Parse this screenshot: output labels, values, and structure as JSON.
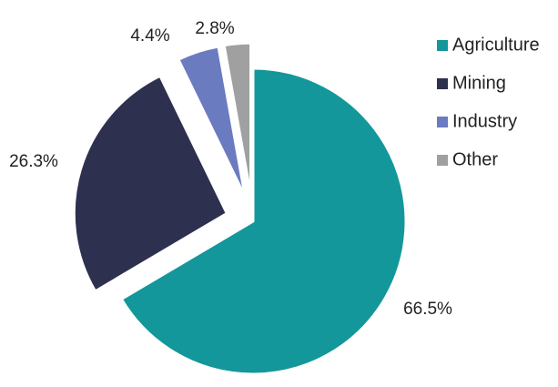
{
  "chart_data": {
    "type": "pie",
    "categories": [
      "Agriculture",
      "Mining",
      "Industry",
      "Other"
    ],
    "values": [
      66.5,
      26.3,
      4.4,
      2.8
    ],
    "value_labels": [
      "66.5%",
      "26.3%",
      "4.4%",
      "2.8%"
    ],
    "colors": [
      "#13979a",
      "#2e3050",
      "#6b7bc0",
      "#a0a0a0"
    ],
    "legend": "right"
  }
}
